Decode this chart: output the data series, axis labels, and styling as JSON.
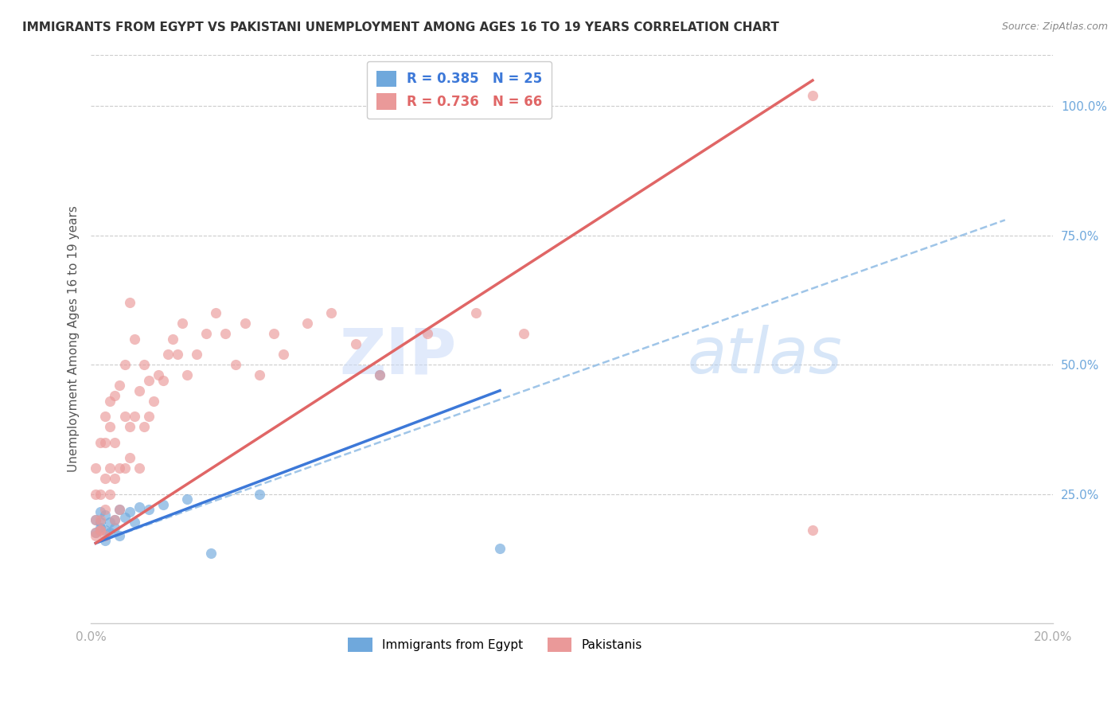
{
  "title": "IMMIGRANTS FROM EGYPT VS PAKISTANI UNEMPLOYMENT AMONG AGES 16 TO 19 YEARS CORRELATION CHART",
  "source": "Source: ZipAtlas.com",
  "ylabel": "Unemployment Among Ages 16 to 19 years",
  "xlim": [
    0.0,
    0.2
  ],
  "ylim": [
    0.0,
    1.1
  ],
  "egypt_R": 0.385,
  "egypt_N": 25,
  "pakistan_R": 0.736,
  "pakistan_N": 66,
  "egypt_color": "#6fa8dc",
  "pakistan_color": "#ea9999",
  "egypt_line_color": "#3c78d8",
  "pakistan_line_color": "#e06666",
  "dashed_line_color": "#9fc5e8",
  "watermark_zip": "ZIP",
  "watermark_atlas": "atlas",
  "background_color": "#ffffff",
  "grid_color": "#cccccc",
  "title_fontsize": 11,
  "tick_label_color": "#aaaaaa",
  "right_tick_color": "#6fa8dc",
  "egypt_x": [
    0.001,
    0.001,
    0.002,
    0.002,
    0.002,
    0.003,
    0.003,
    0.003,
    0.004,
    0.004,
    0.005,
    0.005,
    0.006,
    0.006,
    0.007,
    0.008,
    0.009,
    0.01,
    0.012,
    0.015,
    0.02,
    0.025,
    0.035,
    0.06,
    0.085
  ],
  "egypt_y": [
    0.175,
    0.2,
    0.185,
    0.215,
    0.195,
    0.18,
    0.21,
    0.16,
    0.195,
    0.175,
    0.2,
    0.185,
    0.22,
    0.17,
    0.205,
    0.215,
    0.195,
    0.225,
    0.22,
    0.23,
    0.24,
    0.135,
    0.25,
    0.48,
    0.145
  ],
  "pakistan_x": [
    0.001,
    0.001,
    0.001,
    0.001,
    0.001,
    0.002,
    0.002,
    0.002,
    0.002,
    0.002,
    0.003,
    0.003,
    0.003,
    0.003,
    0.003,
    0.004,
    0.004,
    0.004,
    0.004,
    0.005,
    0.005,
    0.005,
    0.005,
    0.006,
    0.006,
    0.006,
    0.007,
    0.007,
    0.007,
    0.008,
    0.008,
    0.008,
    0.009,
    0.009,
    0.01,
    0.01,
    0.011,
    0.011,
    0.012,
    0.012,
    0.013,
    0.014,
    0.015,
    0.016,
    0.017,
    0.018,
    0.019,
    0.02,
    0.022,
    0.024,
    0.026,
    0.028,
    0.03,
    0.032,
    0.035,
    0.038,
    0.04,
    0.045,
    0.05,
    0.055,
    0.06,
    0.07,
    0.08,
    0.09,
    0.15,
    0.15
  ],
  "pakistan_y": [
    0.175,
    0.2,
    0.25,
    0.3,
    0.17,
    0.2,
    0.18,
    0.25,
    0.35,
    0.18,
    0.22,
    0.28,
    0.35,
    0.4,
    0.17,
    0.25,
    0.3,
    0.38,
    0.43,
    0.2,
    0.28,
    0.35,
    0.44,
    0.22,
    0.3,
    0.46,
    0.3,
    0.4,
    0.5,
    0.32,
    0.38,
    0.62,
    0.4,
    0.55,
    0.3,
    0.45,
    0.38,
    0.5,
    0.4,
    0.47,
    0.43,
    0.48,
    0.47,
    0.52,
    0.55,
    0.52,
    0.58,
    0.48,
    0.52,
    0.56,
    0.6,
    0.56,
    0.5,
    0.58,
    0.48,
    0.56,
    0.52,
    0.58,
    0.6,
    0.54,
    0.48,
    0.56,
    0.6,
    0.56,
    1.02,
    0.18
  ],
  "egypt_line_x": [
    0.001,
    0.085
  ],
  "egypt_line_y": [
    0.155,
    0.45
  ],
  "pakistan_line_x": [
    0.001,
    0.15
  ],
  "pakistan_line_y": [
    0.155,
    1.05
  ],
  "dash_line_x": [
    0.001,
    0.19
  ],
  "dash_line_y": [
    0.155,
    0.78
  ]
}
